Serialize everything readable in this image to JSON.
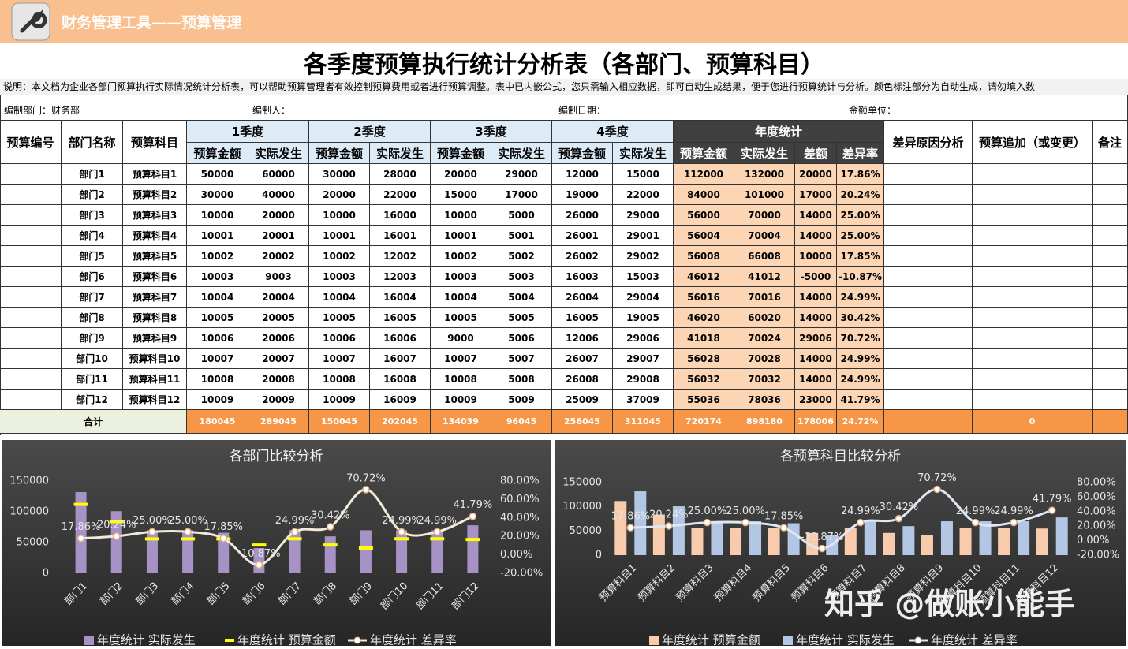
{
  "header": {
    "app_title": "财务管理工具——预算管理",
    "title": "各季度预算执行统计分析表（各部门、预算科目）",
    "note": "说明：本文档为企业各部门预算执行实际情况统计分析表，可以帮助预算管理者有效控制预算费用或者进行预算调整。表中已内嵌公式，您只需输入相应数据，即可自动生成结果，便于您进行预算统计与分析。颜色标注部分为自动生成，请勿填入数",
    "info": [
      "编制部门：财务部",
      "编制人：",
      "编制日期：",
      "金额单位："
    ]
  },
  "table": {
    "headers": [
      "预算编号",
      "部门名称",
      "预算科目",
      "1季度",
      "2季度",
      "3季度",
      "4季度",
      "年度统计",
      "差异原因分析",
      "预算追加（或变更）",
      "备注"
    ],
    "subheaders": [
      "预算金额",
      "实际发生",
      "预算金额",
      "实际发生",
      "预算金额",
      "实际发生",
      "预算金额",
      "实际发生",
      "预算金额",
      "实际发生",
      "差额",
      "差异率"
    ],
    "rows": [
      [
        "部门1",
        "预算科目1",
        50000,
        60000,
        30000,
        28000,
        20000,
        29000,
        12000,
        15000,
        112000,
        132000,
        20000,
        "17.86%"
      ],
      [
        "部门2",
        "预算科目2",
        30000,
        40000,
        20000,
        22000,
        15000,
        17000,
        19000,
        22000,
        84000,
        101000,
        17000,
        "20.24%"
      ],
      [
        "部门3",
        "预算科目3",
        10000,
        20000,
        10000,
        16000,
        10000,
        5000,
        26000,
        29000,
        56000,
        70000,
        14000,
        "25.00%"
      ],
      [
        "部门4",
        "预算科目4",
        10001,
        20001,
        10001,
        16001,
        10001,
        5001,
        26001,
        29001,
        56004,
        70004,
        14000,
        "25.00%"
      ],
      [
        "部门5",
        "预算科目5",
        10002,
        20002,
        10002,
        12002,
        10002,
        5002,
        26002,
        29002,
        56008,
        66008,
        10000,
        "17.85%"
      ],
      [
        "部门6",
        "预算科目6",
        10003,
        9003,
        10003,
        12003,
        10003,
        5003,
        16003,
        15003,
        46012,
        41012,
        -5000,
        "-10.87%"
      ],
      [
        "部门7",
        "预算科目7",
        10004,
        20004,
        10004,
        16004,
        10004,
        5004,
        26004,
        29004,
        56016,
        70016,
        14000,
        "24.99%"
      ],
      [
        "部门8",
        "预算科目8",
        10005,
        20005,
        10005,
        16005,
        10005,
        5005,
        16005,
        19005,
        46020,
        60020,
        14000,
        "30.42%"
      ],
      [
        "部门9",
        "预算科目9",
        10006,
        20006,
        10006,
        16006,
        9000,
        5006,
        12006,
        29006,
        41018,
        70024,
        29006,
        "70.72%"
      ],
      [
        "部门10",
        "预算科目10",
        10007,
        20007,
        10007,
        16007,
        10007,
        5007,
        26007,
        29007,
        56028,
        70028,
        14000,
        "24.99%"
      ],
      [
        "部门11",
        "预算科目11",
        10008,
        20008,
        10008,
        16008,
        10008,
        5008,
        26008,
        29008,
        56032,
        70032,
        14000,
        "24.99%"
      ],
      [
        "部门12",
        "预算科目12",
        10009,
        20009,
        10009,
        16009,
        10009,
        5009,
        25009,
        37009,
        55036,
        78036,
        23000,
        "41.79%"
      ]
    ],
    "total_label": "合计",
    "total": [
      180045,
      289045,
      150045,
      202045,
      134039,
      96045,
      256045,
      311045,
      720174,
      898180,
      178006,
      "24.72%"
    ],
    "total_addition": 0
  },
  "chart_data": [
    {
      "type": "combo",
      "title": "各部门比较分析",
      "categories": [
        "部门1",
        "部门2",
        "部门3",
        "部门4",
        "部门5",
        "部门6",
        "部门7",
        "部门8",
        "部门9",
        "部门10",
        "部门11",
        "部门12"
      ],
      "series": [
        {
          "name": "年度统计 实际发生",
          "type": "bar",
          "color": "#a792c6",
          "values": [
            132000,
            101000,
            70000,
            70004,
            66008,
            41012,
            70016,
            60020,
            70024,
            70028,
            70032,
            78036
          ]
        },
        {
          "name": "年度统计 预算金额",
          "type": "dash",
          "color": "#ffff00",
          "values": [
            112000,
            84000,
            56000,
            56004,
            56008,
            46012,
            56016,
            46020,
            41018,
            56028,
            56032,
            55036
          ]
        },
        {
          "name": "年度统计 差异率",
          "type": "line",
          "axis": "y2",
          "color": "#f3e9d8",
          "values": [
            17.86,
            20.24,
            25,
            25,
            17.85,
            -10.87,
            24.99,
            30.42,
            70.72,
            24.99,
            24.99,
            41.79
          ],
          "value_labels": [
            "17.86%",
            "20.24%",
            "25.00%",
            "25.00%",
            "17.85%",
            "-10.87%",
            "24.99%",
            "30.42%",
            "70.72%",
            "24.99%",
            "24.99%",
            "41.79%"
          ]
        }
      ],
      "ylim": [
        0,
        150000
      ],
      "yticks": [
        0,
        50000,
        100000,
        150000
      ],
      "y2lim": [
        -20,
        80
      ],
      "y2ticks": [
        {
          "value": -20,
          "label": "-20.00%"
        },
        {
          "value": 0,
          "label": "0.00%"
        },
        {
          "value": 20,
          "label": "20.00%"
        },
        {
          "value": 40,
          "label": "40.00%"
        },
        {
          "value": 60,
          "label": "60.00%"
        },
        {
          "value": 80,
          "label": "80.00%"
        }
      ]
    },
    {
      "type": "combo",
      "title": "各预算科目比较分析",
      "categories": [
        "预算科目1",
        "预算科目2",
        "预算科目3",
        "预算科目4",
        "预算科目5",
        "预算科目6",
        "预算科目7",
        "预算科目8",
        "预算科目9",
        "预算科目10",
        "预算科目11",
        "预算科目12"
      ],
      "series": [
        {
          "name": "年度统计 预算金额",
          "type": "bar",
          "color": "#f9cbad",
          "values": [
            112000,
            84000,
            56000,
            56004,
            56008,
            46012,
            56016,
            46020,
            41018,
            56028,
            56032,
            55036
          ]
        },
        {
          "name": "年度统计 实际发生",
          "type": "bar",
          "color": "#b3c7e4",
          "values": [
            132000,
            101000,
            70000,
            70004,
            66008,
            41012,
            70016,
            60020,
            70024,
            70028,
            70032,
            78036
          ]
        },
        {
          "name": "年度统计 差异率",
          "type": "line",
          "axis": "y2",
          "color": "#dfe8f5",
          "values": [
            17.86,
            20.24,
            25,
            25,
            17.85,
            -10.87,
            24.99,
            30.42,
            70.72,
            24.99,
            24.99,
            41.79
          ],
          "value_labels": [
            "17.86%",
            "20.24%",
            "25.00%",
            "25.00%",
            "17.85%",
            "-10.87%",
            "24.99%",
            "30.42%",
            "70.72%",
            "24.99%",
            "24.99%",
            "41.79%"
          ]
        }
      ],
      "ylim": [
        0,
        150000
      ],
      "yticks": [
        0,
        50000,
        100000,
        150000
      ],
      "y2lim": [
        -20,
        80
      ],
      "y2ticks": [
        {
          "value": -20,
          "label": "-20.00%"
        },
        {
          "value": 0,
          "label": "0.00%"
        },
        {
          "value": 20,
          "label": "20.00%"
        },
        {
          "value": 40,
          "label": "40.00%"
        },
        {
          "value": 60,
          "label": "60.00%"
        },
        {
          "value": 80,
          "label": "80.00%"
        }
      ]
    }
  ],
  "watermark": "知乎 @做账小能手"
}
